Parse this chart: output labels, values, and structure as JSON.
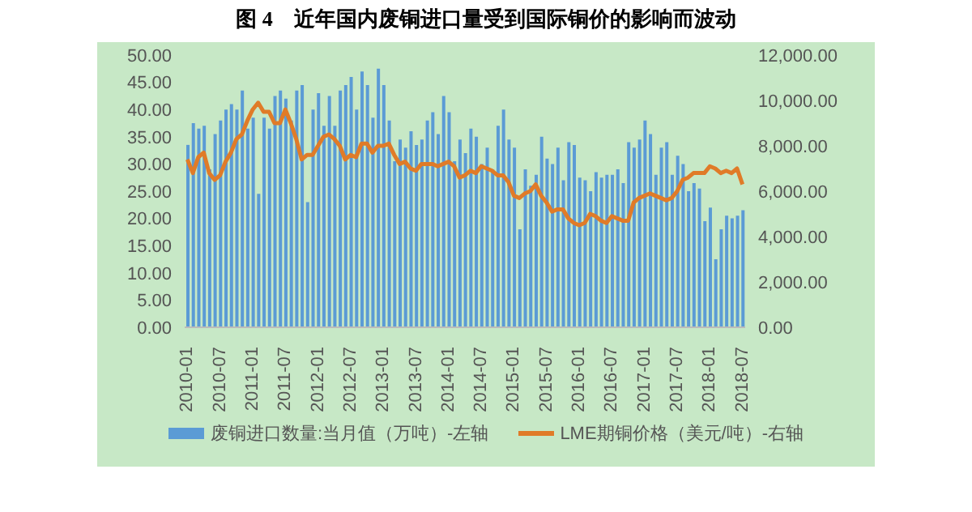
{
  "chart_data": {
    "type": "bar",
    "title": "图 4　近年国内废铜进口量受到国际铜价的影响而波动",
    "categories": [
      "2010-01",
      null,
      null,
      null,
      null,
      null,
      "2010-07",
      null,
      null,
      null,
      null,
      null,
      "2011-01",
      null,
      null,
      null,
      null,
      null,
      "2011-07",
      null,
      null,
      null,
      null,
      null,
      "2012-01",
      null,
      null,
      null,
      null,
      null,
      "2012-07",
      null,
      null,
      null,
      null,
      null,
      "2013-01",
      null,
      null,
      null,
      null,
      null,
      "2013-07",
      null,
      null,
      null,
      null,
      null,
      "2014-01",
      null,
      null,
      null,
      null,
      null,
      "2014-07",
      null,
      null,
      null,
      null,
      null,
      "2015-01",
      null,
      null,
      null,
      null,
      null,
      "2015-07",
      null,
      null,
      null,
      null,
      null,
      "2016-01",
      null,
      null,
      null,
      null,
      null,
      "2016-07",
      null,
      null,
      null,
      null,
      null,
      "2017-01",
      null,
      null,
      null,
      null,
      null,
      "2017-07",
      null,
      null,
      null,
      null,
      null,
      "2018-01",
      null,
      null,
      null,
      null,
      null,
      "2018-07"
    ],
    "series": [
      {
        "name": "废铜进口数量:当月值（万吨）-左轴",
        "color": "#5b9bd5",
        "values": [
          33.5,
          37.5,
          36.5,
          37,
          29,
          35.5,
          38,
          40,
          41,
          40,
          43.5,
          36.5,
          38.5,
          24.5,
          38.5,
          36.5,
          42.5,
          43.5,
          42,
          38,
          43.5,
          44.5,
          23,
          40,
          43,
          37,
          42.5,
          37,
          43.5,
          44.5,
          46,
          40,
          47,
          44.5,
          38.5,
          47.5,
          44.5,
          38,
          30.5,
          34.5,
          33,
          36,
          33.5,
          34.5,
          38,
          39.5,
          35.5,
          42.5,
          39.5,
          30.5,
          34.5,
          32,
          36.5,
          35,
          30,
          33,
          29,
          37,
          40,
          34.5,
          33,
          18,
          29,
          26,
          28,
          35,
          31,
          30,
          33,
          27,
          34,
          33.5,
          27.5,
          27,
          25,
          28.5,
          27.5,
          28,
          28,
          29,
          26.5,
          34,
          33,
          34.5,
          38,
          35.5,
          28,
          33,
          34,
          28,
          31.5,
          30,
          25,
          26.5,
          25.5,
          19.5,
          22,
          12.5,
          18,
          20.5,
          20,
          20.5,
          21.5
        ]
      },
      {
        "type": "line",
        "name": "LME期铜价格（美元/吨）-右轴",
        "color": "#e07b28",
        "axis": "y2",
        "values": [
          7400,
          6800,
          7500,
          7700,
          6800,
          6500,
          6700,
          7300,
          7700,
          8300,
          8500,
          9100,
          9600,
          9900,
          9500,
          9500,
          9000,
          9000,
          9600,
          9000,
          8300,
          7400,
          7600,
          7600,
          8000,
          8400,
          8500,
          8300,
          8000,
          7400,
          7600,
          7500,
          8100,
          8100,
          7700,
          8000,
          8000,
          8100,
          7600,
          7200,
          7300,
          7000,
          6900,
          7200,
          7200,
          7200,
          7100,
          7200,
          7300,
          7100,
          6600,
          6700,
          6900,
          6800,
          7100,
          7000,
          6900,
          6700,
          6700,
          6400,
          5800,
          5700,
          5900,
          6000,
          6300,
          5800,
          5500,
          5100,
          5200,
          5200,
          4800,
          4600,
          4500,
          4600,
          5000,
          4900,
          4700,
          4600,
          4900,
          4800,
          4700,
          4700,
          5500,
          5700,
          5800,
          5900,
          5800,
          5700,
          5600,
          5700,
          6000,
          6500,
          6600,
          6800,
          6800,
          6800,
          7100,
          7000,
          6800,
          6900,
          6800,
          7000,
          6300
        ]
      }
    ],
    "ylim": [
      0,
      50
    ],
    "yticks": [
      {
        "value": 0,
        "label": "0.00"
      },
      {
        "value": 5,
        "label": "5.00"
      },
      {
        "value": 10,
        "label": "10.00"
      },
      {
        "value": 15,
        "label": "15.00"
      },
      {
        "value": 20,
        "label": "20.00"
      },
      {
        "value": 25,
        "label": "25.00"
      },
      {
        "value": 30,
        "label": "30.00"
      },
      {
        "value": 35,
        "label": "35.00"
      },
      {
        "value": 40,
        "label": "40.00"
      },
      {
        "value": 45,
        "label": "45.00"
      },
      {
        "value": 50,
        "label": "50.00"
      }
    ],
    "y2lim": [
      0,
      12000
    ],
    "y2ticks": [
      {
        "value": 0,
        "label": "0.00"
      },
      {
        "value": 2000,
        "label": "2,000.00"
      },
      {
        "value": 4000,
        "label": "4,000.00"
      },
      {
        "value": 6000,
        "label": "6,000.00"
      },
      {
        "value": 8000,
        "label": "8,000.00"
      },
      {
        "value": 10000,
        "label": "10,000.00"
      },
      {
        "value": 12000,
        "label": "12,000.00"
      }
    ],
    "legend": "bottom",
    "line_style": "solid"
  }
}
